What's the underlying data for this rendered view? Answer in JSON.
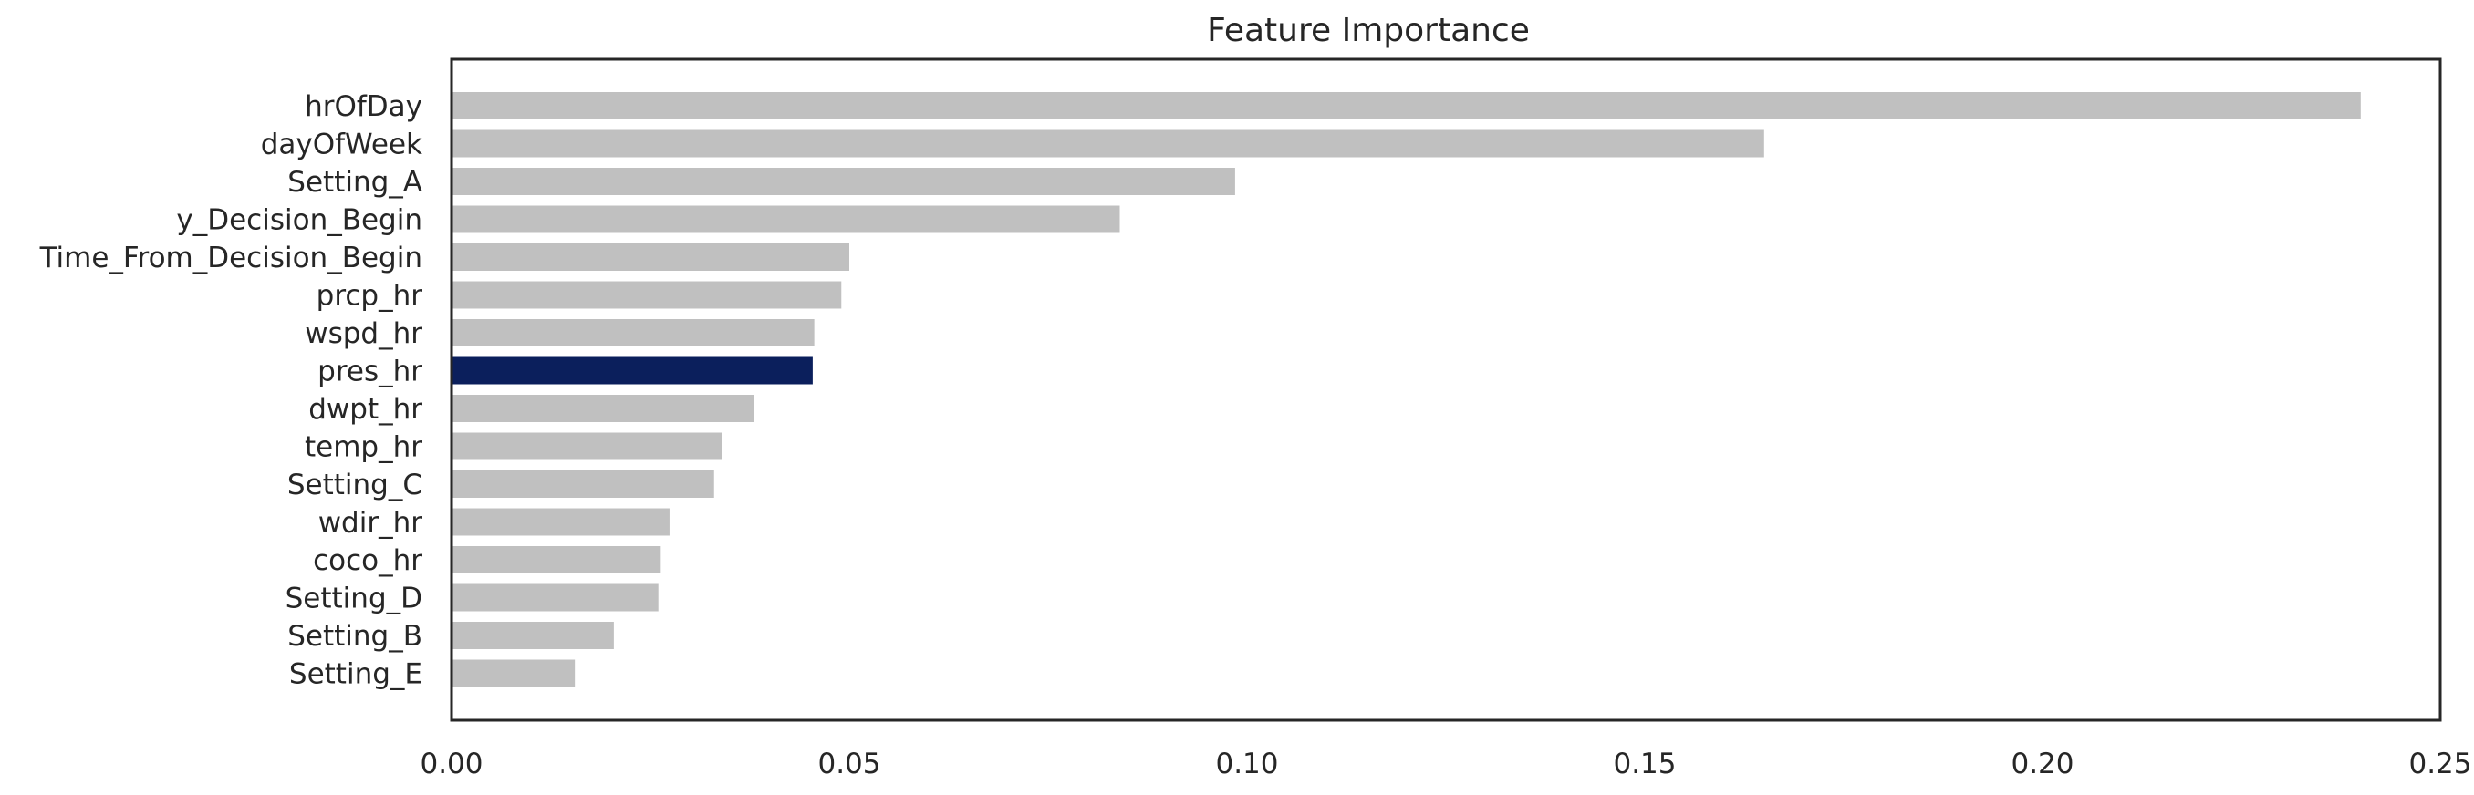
{
  "chart_data": {
    "type": "bar",
    "orientation": "horizontal",
    "title": "Feature Importance",
    "xlabel": "",
    "ylabel": "",
    "xlim": [
      0,
      0.25
    ],
    "xticks": [
      0.0,
      0.05,
      0.1,
      0.15,
      0.2,
      0.25
    ],
    "xtick_labels": [
      "0.00",
      "0.05",
      "0.10",
      "0.15",
      "0.20",
      "0.25"
    ],
    "grid": false,
    "legend": "none",
    "categories": [
      "hrOfDay",
      "dayOfWeek",
      "Setting_A",
      "y_Decision_Begin",
      "Time_From_Decision_Begin",
      "prcp_hr",
      "wspd_hr",
      "pres_hr",
      "dwpt_hr",
      "temp_hr",
      "Setting_C",
      "wdir_hr",
      "coco_hr",
      "Setting_D",
      "Setting_B",
      "Setting_E"
    ],
    "values": [
      0.24,
      0.165,
      0.0985,
      0.084,
      0.05,
      0.049,
      0.0456,
      0.0454,
      0.038,
      0.034,
      0.033,
      0.0274,
      0.0263,
      0.026,
      0.0204,
      0.0155
    ],
    "highlight": "pres_hr",
    "colors": {
      "default_bar": "#c0c0c0",
      "highlight_bar": "#0b1f5c",
      "frame": "#262626",
      "text": "#262626"
    }
  }
}
